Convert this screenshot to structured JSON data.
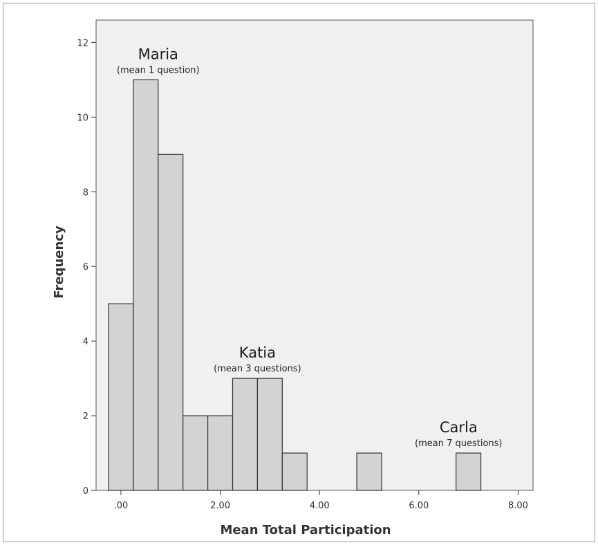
{
  "chart_data": {
    "type": "bar",
    "xlabel": "Mean Total Participation",
    "ylabel": "Frequency",
    "xlim": [
      -0.5,
      8.3
    ],
    "ylim": [
      0,
      12.6
    ],
    "x_ticks": [
      0,
      2,
      4,
      6,
      8
    ],
    "x_tick_labels": [
      ".00",
      "2.00",
      "4.00",
      "6.00",
      "8.00"
    ],
    "y_ticks": [
      0,
      2,
      4,
      6,
      8,
      10,
      12
    ],
    "y_tick_labels": [
      "0",
      "2",
      "4",
      "6",
      "8",
      "10",
      "12"
    ],
    "bin_width": 0.5,
    "bins": [
      {
        "start": -0.25,
        "end": 0.25,
        "value": 5
      },
      {
        "start": 0.25,
        "end": 0.75,
        "value": 11
      },
      {
        "start": 0.75,
        "end": 1.25,
        "value": 9
      },
      {
        "start": 1.25,
        "end": 1.75,
        "value": 2
      },
      {
        "start": 1.75,
        "end": 2.25,
        "value": 2
      },
      {
        "start": 2.25,
        "end": 2.75,
        "value": 3
      },
      {
        "start": 2.75,
        "end": 3.25,
        "value": 3
      },
      {
        "start": 3.25,
        "end": 3.75,
        "value": 1
      },
      {
        "start": 4.75,
        "end": 5.25,
        "value": 1
      },
      {
        "start": 6.75,
        "end": 7.25,
        "value": 1
      }
    ],
    "annotations": [
      {
        "name": "Maria",
        "note": "(mean 1 question)",
        "x": 0.75,
        "y": 11.0
      },
      {
        "name": "Katia",
        "note": "(mean 3 questions)",
        "x": 2.75,
        "y": 3.0
      },
      {
        "name": "Carla",
        "note": "(mean 7 questions)",
        "x": 6.8,
        "y": 1.0
      }
    ],
    "grid": false,
    "colors": {
      "bar_fill": "#d3d3d3",
      "bar_stroke": "#333333",
      "plot_bg": "#f0f0f0"
    }
  }
}
